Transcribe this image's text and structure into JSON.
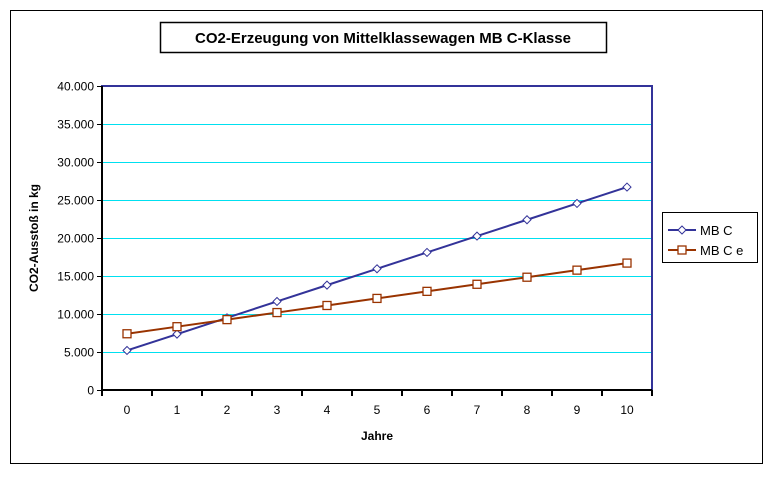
{
  "chart_data": {
    "type": "line",
    "title": "CO2-Erzeugung von Mittelklassewagen MB C-Klasse",
    "xlabel": "Jahre",
    "ylabel": "CO2-Ausstoß in kg",
    "x": [
      0,
      1,
      2,
      3,
      4,
      5,
      6,
      7,
      8,
      9,
      10
    ],
    "ylim": [
      0,
      40000
    ],
    "yticks": [
      0,
      5000,
      10000,
      15000,
      20000,
      25000,
      30000,
      35000,
      40000
    ],
    "ytick_labels": [
      "0",
      "5.000",
      "10.000",
      "15.000",
      "20.000",
      "25.000",
      "30.000",
      "35.000",
      "40.000"
    ],
    "grid": true,
    "legend_position": "right",
    "series": [
      {
        "name": "MB C",
        "color": "#333399",
        "marker": "diamond",
        "values": [
          5200,
          7350,
          9500,
          11650,
          13800,
          15950,
          18100,
          20250,
          22400,
          24550,
          26700
        ]
      },
      {
        "name": "MB C e",
        "color": "#993300",
        "marker": "square",
        "values": [
          7400,
          8330,
          9260,
          10190,
          11120,
          12050,
          12980,
          13910,
          14840,
          15770,
          16700
        ]
      }
    ]
  }
}
